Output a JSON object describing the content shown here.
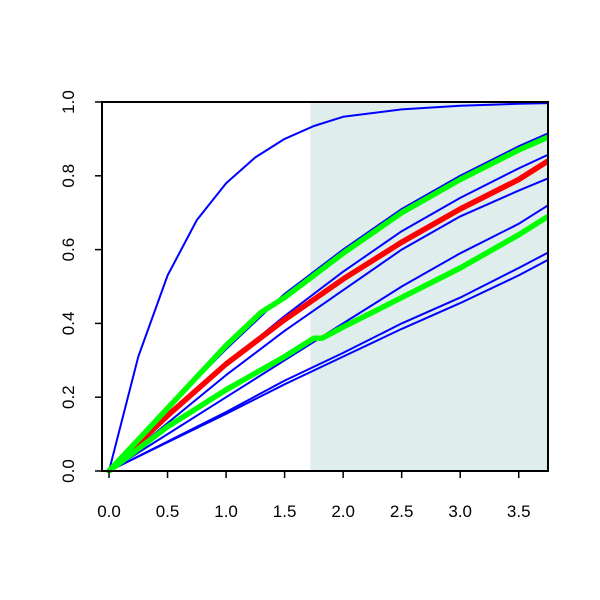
{
  "chart_data": {
    "type": "line",
    "title": "",
    "xlabel": "",
    "ylabel": "",
    "xlim": [
      -0.06,
      3.75
    ],
    "ylim": [
      0,
      1
    ],
    "x_ticks": [
      0.0,
      0.5,
      1.0,
      1.5,
      2.0,
      2.5,
      3.0,
      3.5
    ],
    "x_tick_labels": [
      "0.0",
      "0.5",
      "1.0",
      "1.5",
      "2.0",
      "2.5",
      "3.0",
      "3.5"
    ],
    "y_ticks": [
      0.0,
      0.2,
      0.4,
      0.6,
      0.8,
      1.0
    ],
    "y_tick_labels": [
      "0.0",
      "0.2",
      "0.4",
      "0.6",
      "0.8",
      "1.0"
    ],
    "shaded_region": {
      "x": [
        1.72,
        3.75
      ],
      "color": "#e0eded"
    },
    "grid": false,
    "legend": "none",
    "series": [
      {
        "color": "#0000ff",
        "style": "thin",
        "x": [
          0,
          0.25,
          0.5,
          0.75,
          1.0,
          1.25,
          1.5,
          1.75,
          2.0,
          2.5,
          3.0,
          3.5,
          3.75
        ],
        "y": [
          0,
          0.31,
          0.53,
          0.68,
          0.78,
          0.85,
          0.9,
          0.935,
          0.96,
          0.98,
          0.99,
          0.995,
          0.997
        ]
      },
      {
        "color": "#0000ff",
        "style": "thin",
        "x": [
          0,
          0.5,
          1.0,
          1.5,
          2.0,
          2.5,
          3.0,
          3.5,
          3.75
        ],
        "y": [
          0,
          0.17,
          0.33,
          0.48,
          0.6,
          0.71,
          0.8,
          0.88,
          0.915
        ]
      },
      {
        "color": "#0000ff",
        "style": "thin",
        "x": [
          0,
          0.5,
          1.0,
          1.5,
          2.0,
          2.5,
          3.0,
          3.5,
          3.75
        ],
        "y": [
          0,
          0.15,
          0.29,
          0.42,
          0.54,
          0.65,
          0.74,
          0.82,
          0.857
        ]
      },
      {
        "color": "#0000ff",
        "style": "thin",
        "x": [
          0,
          0.5,
          1.0,
          1.5,
          2.0,
          2.5,
          3.0,
          3.5,
          3.75
        ],
        "y": [
          0,
          0.13,
          0.26,
          0.38,
          0.49,
          0.6,
          0.69,
          0.76,
          0.793
        ]
      },
      {
        "color": "#0000ff",
        "style": "thin",
        "x": [
          0,
          0.5,
          1.0,
          1.5,
          2.0,
          2.5,
          3.0,
          3.5,
          3.75
        ],
        "y": [
          0,
          0.1,
          0.2,
          0.3,
          0.4,
          0.5,
          0.59,
          0.67,
          0.72
        ]
      },
      {
        "color": "#0000ff",
        "style": "thin",
        "x": [
          0,
          0.5,
          1.0,
          1.5,
          2.0,
          2.5,
          3.0,
          3.5,
          3.75
        ],
        "y": [
          0,
          0.08,
          0.16,
          0.245,
          0.32,
          0.4,
          0.47,
          0.55,
          0.592
        ]
      },
      {
        "color": "#0000ff",
        "style": "thin",
        "x": [
          0,
          0.5,
          1.0,
          1.5,
          2.0,
          2.5,
          3.0,
          3.5,
          3.75
        ],
        "y": [
          0,
          0.078,
          0.155,
          0.235,
          0.31,
          0.385,
          0.455,
          0.53,
          0.572
        ]
      },
      {
        "color": "#ff0000",
        "style": "thick",
        "x": [
          0,
          0.5,
          1.0,
          1.5,
          2.0,
          2.5,
          3.0,
          3.5,
          3.75
        ],
        "y": [
          0,
          0.15,
          0.29,
          0.41,
          0.52,
          0.62,
          0.71,
          0.79,
          0.84
        ]
      },
      {
        "color": "#00ff00",
        "style": "thick",
        "x": [
          0,
          0.5,
          1.0,
          1.3,
          1.5,
          2.0,
          2.5,
          3.0,
          3.5,
          3.75
        ],
        "y": [
          0,
          0.17,
          0.34,
          0.43,
          0.47,
          0.59,
          0.7,
          0.79,
          0.87,
          0.905
        ]
      },
      {
        "color": "#00ff00",
        "style": "thick",
        "x": [
          0,
          0.5,
          1.0,
          1.5,
          1.75,
          1.82,
          2.0,
          2.5,
          3.0,
          3.5,
          3.75
        ],
        "y": [
          0,
          0.12,
          0.22,
          0.31,
          0.36,
          0.36,
          0.39,
          0.47,
          0.55,
          0.64,
          0.69
        ]
      }
    ]
  }
}
